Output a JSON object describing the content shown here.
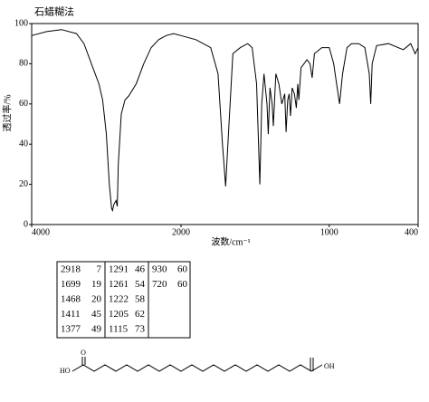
{
  "chart_data": {
    "type": "line",
    "title": "石蜡糊法",
    "xlabel": "波数/cm⁻¹",
    "ylabel": "透过率/%",
    "x": [
      4000,
      3800,
      3600,
      3400,
      3300,
      3200,
      3100,
      3050,
      3000,
      2960,
      2930,
      2918,
      2900,
      2870,
      2853,
      2840,
      2800,
      2750,
      2700,
      2600,
      2500,
      2400,
      2300,
      2200,
      2100,
      2000,
      1900,
      1800,
      1750,
      1720,
      1699,
      1680,
      1650,
      1600,
      1550,
      1520,
      1490,
      1468,
      1455,
      1440,
      1420,
      1411,
      1400,
      1385,
      1377,
      1360,
      1340,
      1320,
      1300,
      1291,
      1280,
      1270,
      1261,
      1250,
      1235,
      1222,
      1212,
      1205,
      1190,
      1150,
      1130,
      1115,
      1100,
      1050,
      1000,
      970,
      950,
      930,
      910,
      880,
      850,
      800,
      760,
      730,
      720,
      710,
      680,
      600,
      500,
      450,
      420,
      400
    ],
    "values": [
      94,
      96,
      97,
      95,
      90,
      80,
      70,
      62,
      45,
      20,
      8,
      7,
      10,
      12,
      9,
      30,
      55,
      62,
      64,
      70,
      80,
      88,
      92,
      94,
      95,
      94,
      92,
      88,
      75,
      40,
      19,
      45,
      85,
      88,
      90,
      88,
      70,
      20,
      60,
      75,
      60,
      45,
      68,
      60,
      49,
      75,
      70,
      60,
      65,
      46,
      62,
      65,
      54,
      68,
      65,
      58,
      70,
      62,
      78,
      82,
      80,
      73,
      85,
      88,
      88,
      80,
      70,
      60,
      75,
      88,
      90,
      90,
      88,
      75,
      60,
      80,
      89,
      90,
      87,
      90,
      85,
      88
    ],
    "color": "#000000",
    "xlim": [
      4000,
      400
    ],
    "x_scale_break": 2000,
    "xticks": [
      4000,
      2000,
      1000,
      400
    ],
    "ylim": [
      0,
      100
    ],
    "yticks": [
      0,
      20,
      40,
      60,
      80,
      100
    ]
  },
  "table": {
    "rows": [
      [
        2918,
        7,
        1291,
        46,
        930,
        60
      ],
      [
        1699,
        19,
        1261,
        54,
        720,
        60
      ],
      [
        1468,
        20,
        1222,
        58
      ],
      [
        1411,
        45,
        1205,
        62
      ],
      [
        1377,
        49,
        1115,
        73
      ]
    ]
  },
  "structure": {
    "left": "HO",
    "right": "OH",
    "oxygen": "O"
  }
}
